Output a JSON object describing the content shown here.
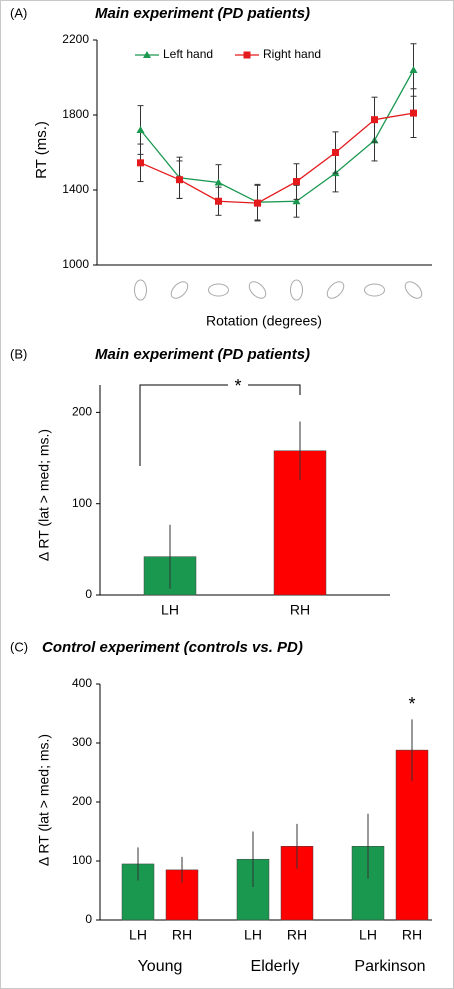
{
  "chart_data": [
    {
      "type": "line",
      "panel": "(A)",
      "title": "Main experiment (PD patients)",
      "x_label": "Rotation (degrees)",
      "y_label": "RT (ms.)",
      "categories": [
        null,
        null,
        null,
        null,
        null,
        null,
        null,
        null
      ],
      "series": [
        {
          "name": "Left hand",
          "color": "#1a9850",
          "marker": "triangle",
          "values": [
            1720,
            1465,
            1440,
            1335,
            1340,
            1490,
            1665,
            2040
          ],
          "errors": [
            130,
            110,
            95,
            95,
            85,
            100,
            110,
            140
          ]
        },
        {
          "name": "Right hand",
          "color": "#e41a1c",
          "marker": "square",
          "values": [
            1545,
            1455,
            1340,
            1330,
            1445,
            1600,
            1775,
            1810
          ],
          "errors": [
            100,
            100,
            75,
            95,
            95,
            110,
            120,
            130
          ]
        }
      ],
      "ylim": [
        1000,
        2200
      ],
      "yticks": [
        1000,
        1400,
        1800,
        2200
      ],
      "legend": "top"
    },
    {
      "type": "bar",
      "panel": "(B)",
      "title": "Main experiment (PD patients)",
      "y_label": "Δ RT (lat > med; ms.)",
      "categories": [
        "LH",
        "RH"
      ],
      "values": [
        42,
        158
      ],
      "errors": [
        35,
        32
      ],
      "colors": [
        "#1a9850",
        "#ff0000"
      ],
      "annotation": "*",
      "ylim": [
        0,
        230
      ],
      "yticks": [
        0,
        100,
        200
      ]
    },
    {
      "type": "grouped_bar",
      "panel": "(C)",
      "title": "Control experiment (controls vs. PD)",
      "y_label": "Δ RT (lat > med; ms.)",
      "categories": [
        "Young",
        "Elderly",
        "Parkinson"
      ],
      "series": [
        {
          "name": "LH",
          "color": "#1a9850",
          "values": [
            95,
            103,
            125
          ],
          "errors": [
            28,
            47,
            55
          ]
        },
        {
          "name": "RH",
          "color": "#ff0000",
          "values": [
            85,
            125,
            288
          ],
          "errors": [
            22,
            38,
            52
          ]
        }
      ],
      "annotation": "*",
      "ylim": [
        0,
        400
      ],
      "yticks": [
        0,
        100,
        200,
        300,
        400
      ]
    }
  ]
}
